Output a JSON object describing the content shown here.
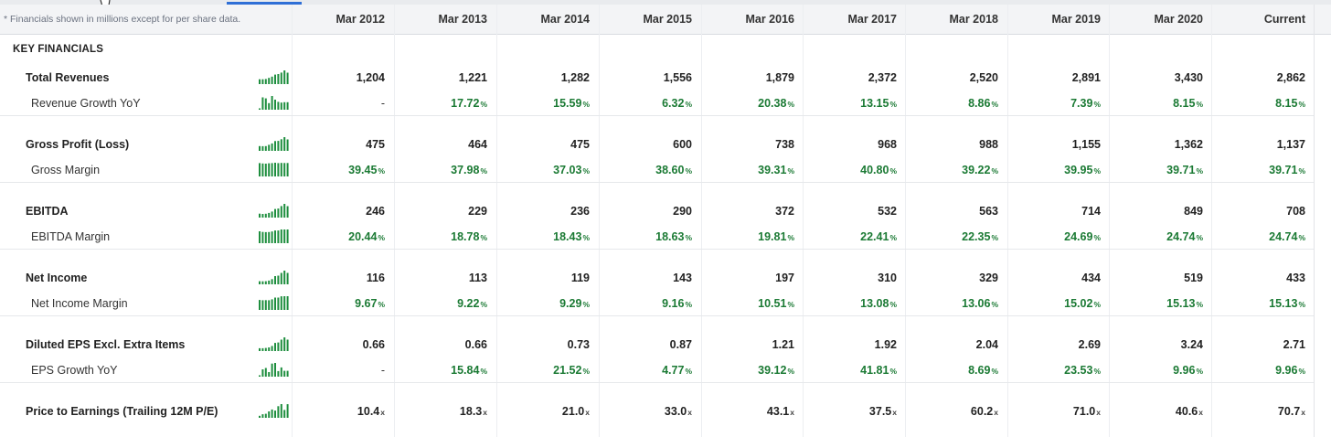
{
  "note": "* Financials shown in millions except for per share data.",
  "columns": [
    "Mar 2012",
    "Mar 2013",
    "Mar 2014",
    "Mar 2015",
    "Mar 2016",
    "Mar 2017",
    "Mar 2018",
    "Mar 2019",
    "Mar 2020",
    "Current"
  ],
  "section_title": "KEY FINANCIALS",
  "colors": {
    "positive": "#1b7a34",
    "spark": "#1e8e3e",
    "header_bg": "#f3f4f6",
    "tab_accent": "#2f6fd6"
  },
  "rows": [
    {
      "id": "total-revenues",
      "kind": "main",
      "label": "Total Revenues",
      "unit": "",
      "values": [
        "1,204",
        "1,221",
        "1,282",
        "1,556",
        "1,879",
        "2,372",
        "2,520",
        "2,891",
        "3,430",
        "2,862"
      ],
      "spark": [
        1204,
        1221,
        1282,
        1556,
        1879,
        2372,
        2520,
        2891,
        3430,
        2862
      ]
    },
    {
      "id": "revenue-growth-yoy",
      "kind": "sub",
      "label": "Revenue Growth YoY",
      "unit": "%",
      "values": [
        "-",
        "17.72",
        "15.59",
        "6.32",
        "20.38",
        "13.15",
        "8.86",
        "7.39",
        "8.15",
        "8.15"
      ],
      "spark": [
        0,
        17.72,
        15.59,
        6.32,
        20.38,
        13.15,
        8.86,
        7.39,
        8.15,
        8.15
      ]
    },
    {
      "id": "gross-profit",
      "kind": "main",
      "label": "Gross Profit (Loss)",
      "unit": "",
      "values": [
        "475",
        "464",
        "475",
        "600",
        "738",
        "968",
        "988",
        "1,155",
        "1,362",
        "1,137"
      ],
      "spark": [
        475,
        464,
        475,
        600,
        738,
        968,
        988,
        1155,
        1362,
        1137
      ]
    },
    {
      "id": "gross-margin",
      "kind": "sub",
      "label": "Gross Margin",
      "unit": "%",
      "values": [
        "39.45",
        "37.98",
        "37.03",
        "38.60",
        "39.31",
        "40.80",
        "39.22",
        "39.95",
        "39.71",
        "39.71"
      ],
      "spark": [
        39.45,
        37.98,
        37.03,
        38.6,
        39.31,
        40.8,
        39.22,
        39.95,
        39.71,
        39.71
      ]
    },
    {
      "id": "ebitda",
      "kind": "main",
      "label": "EBITDA",
      "unit": "",
      "values": [
        "246",
        "229",
        "236",
        "290",
        "372",
        "532",
        "563",
        "714",
        "849",
        "708"
      ],
      "spark": [
        246,
        229,
        236,
        290,
        372,
        532,
        563,
        714,
        849,
        708
      ]
    },
    {
      "id": "ebitda-margin",
      "kind": "sub",
      "label": "EBITDA Margin",
      "unit": "%",
      "values": [
        "20.44",
        "18.78",
        "18.43",
        "18.63",
        "19.81",
        "22.41",
        "22.35",
        "24.69",
        "24.74",
        "24.74"
      ],
      "spark": [
        20.44,
        18.78,
        18.43,
        18.63,
        19.81,
        22.41,
        22.35,
        24.69,
        24.74,
        24.74
      ]
    },
    {
      "id": "net-income",
      "kind": "main",
      "label": "Net Income",
      "unit": "",
      "values": [
        "116",
        "113",
        "119",
        "143",
        "197",
        "310",
        "329",
        "434",
        "519",
        "433"
      ],
      "spark": [
        116,
        113,
        119,
        143,
        197,
        310,
        329,
        434,
        519,
        433
      ]
    },
    {
      "id": "net-income-margin",
      "kind": "sub",
      "label": "Net Income Margin",
      "unit": "%",
      "values": [
        "9.67",
        "9.22",
        "9.29",
        "9.16",
        "10.51",
        "13.08",
        "13.06",
        "15.02",
        "15.13",
        "15.13"
      ],
      "spark": [
        9.67,
        9.22,
        9.29,
        9.16,
        10.51,
        13.08,
        13.06,
        15.02,
        15.13,
        15.13
      ]
    },
    {
      "id": "diluted-eps",
      "kind": "main",
      "label": "Diluted EPS Excl. Extra Items",
      "unit": "",
      "values": [
        "0.66",
        "0.66",
        "0.73",
        "0.87",
        "1.21",
        "1.92",
        "2.04",
        "2.69",
        "3.24",
        "2.71"
      ],
      "spark": [
        0.66,
        0.66,
        0.73,
        0.87,
        1.21,
        1.92,
        2.04,
        2.69,
        3.24,
        2.71
      ]
    },
    {
      "id": "eps-growth-yoy",
      "kind": "sub",
      "label": "EPS Growth YoY",
      "unit": "%",
      "values": [
        "-",
        "15.84",
        "21.52",
        "4.77",
        "39.12",
        "41.81",
        "8.69",
        "23.53",
        "9.96",
        "9.96"
      ],
      "spark": [
        0,
        15.84,
        21.52,
        4.77,
        39.12,
        41.81,
        8.69,
        23.53,
        9.96,
        9.96
      ]
    },
    {
      "id": "price-to-earnings",
      "kind": "main",
      "label": "Price to Earnings (Trailing 12M P/E)",
      "unit": "x",
      "values": [
        "10.4",
        "18.3",
        "21.0",
        "33.0",
        "43.1",
        "37.5",
        "60.2",
        "71.0",
        "40.6",
        "70.7"
      ],
      "spark": [
        10.4,
        18.3,
        21.0,
        33.0,
        43.1,
        37.5,
        60.2,
        71.0,
        40.6,
        70.7
      ]
    }
  ]
}
